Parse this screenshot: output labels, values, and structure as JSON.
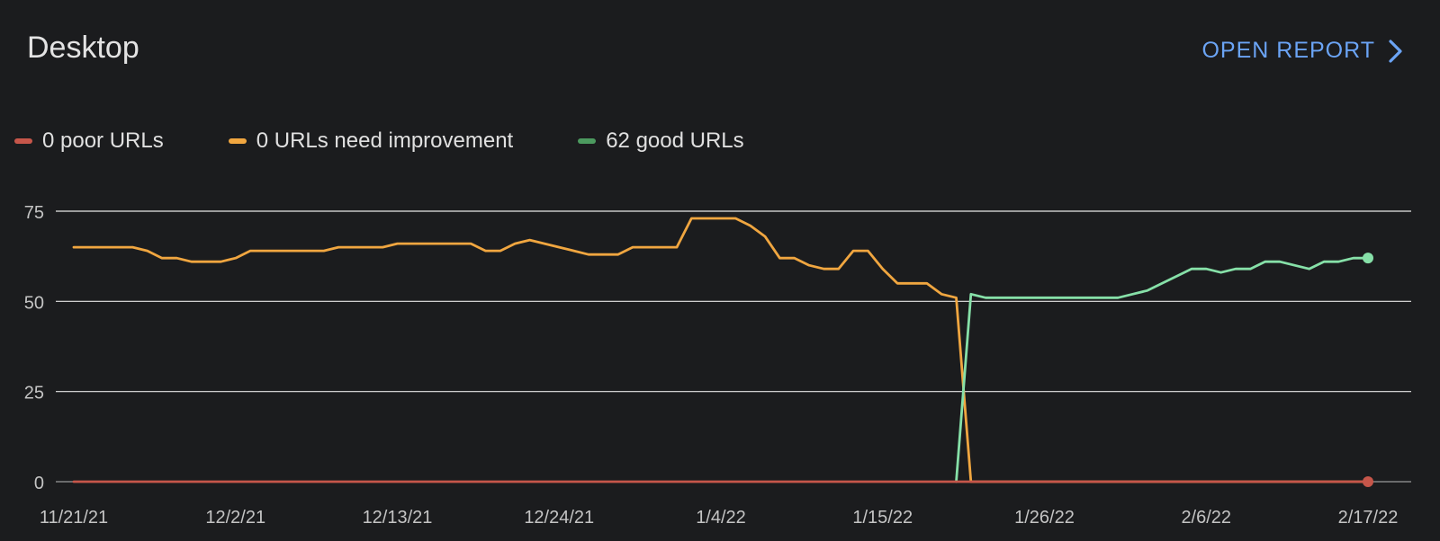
{
  "header": {
    "title": "Desktop",
    "open_report_label": "OPEN REPORT"
  },
  "legend": [
    {
      "label": "0 poor URLs",
      "color": "#c6564a"
    },
    {
      "label": "0 URLs need improvement",
      "color": "#f0a640"
    },
    {
      "label": "62 good URLs",
      "color": "#4c9a5f"
    }
  ],
  "colors": {
    "poor": "#c6564a",
    "needs_improvement": "#f0a640",
    "good": "#86e0a8",
    "accent": "#6ba4f5"
  },
  "chart_data": {
    "type": "line",
    "x_start": "11/21/21",
    "x_end": "2/17/22",
    "xticks": [
      "11/21/21",
      "12/2/21",
      "12/13/21",
      "12/24/21",
      "1/4/22",
      "1/15/22",
      "1/26/22",
      "2/6/22",
      "2/17/22"
    ],
    "yticks": [
      0,
      25,
      50,
      75
    ],
    "ylim": [
      0,
      75
    ],
    "grid": true,
    "legend_position": "top-left",
    "series": [
      {
        "name": "0 URLs need improvement",
        "color": "#f0a640",
        "points": [
          [
            "11/21/21",
            65
          ],
          [
            "11/22/21",
            65
          ],
          [
            "11/23/21",
            65
          ],
          [
            "11/24/21",
            65
          ],
          [
            "11/25/21",
            65
          ],
          [
            "11/26/21",
            64
          ],
          [
            "11/27/21",
            62
          ],
          [
            "11/28/21",
            62
          ],
          [
            "11/29/21",
            61
          ],
          [
            "11/30/21",
            61
          ],
          [
            "12/1/21",
            61
          ],
          [
            "12/2/21",
            62
          ],
          [
            "12/3/21",
            64
          ],
          [
            "12/4/21",
            64
          ],
          [
            "12/5/21",
            64
          ],
          [
            "12/6/21",
            64
          ],
          [
            "12/7/21",
            64
          ],
          [
            "12/8/21",
            64
          ],
          [
            "12/9/21",
            65
          ],
          [
            "12/10/21",
            65
          ],
          [
            "12/11/21",
            65
          ],
          [
            "12/12/21",
            65
          ],
          [
            "12/13/21",
            66
          ],
          [
            "12/14/21",
            66
          ],
          [
            "12/15/21",
            66
          ],
          [
            "12/16/21",
            66
          ],
          [
            "12/17/21",
            66
          ],
          [
            "12/18/21",
            66
          ],
          [
            "12/19/21",
            64
          ],
          [
            "12/20/21",
            64
          ],
          [
            "12/21/21",
            66
          ],
          [
            "12/22/21",
            67
          ],
          [
            "12/23/21",
            66
          ],
          [
            "12/24/21",
            65
          ],
          [
            "12/25/21",
            64
          ],
          [
            "12/26/21",
            63
          ],
          [
            "12/27/21",
            63
          ],
          [
            "12/28/21",
            63
          ],
          [
            "12/29/21",
            65
          ],
          [
            "12/30/21",
            65
          ],
          [
            "12/31/21",
            65
          ],
          [
            "1/1/22",
            65
          ],
          [
            "1/2/22",
            73
          ],
          [
            "1/3/22",
            73
          ],
          [
            "1/4/22",
            73
          ],
          [
            "1/5/22",
            73
          ],
          [
            "1/6/22",
            71
          ],
          [
            "1/7/22",
            68
          ],
          [
            "1/8/22",
            62
          ],
          [
            "1/9/22",
            62
          ],
          [
            "1/10/22",
            60
          ],
          [
            "1/11/22",
            59
          ],
          [
            "1/12/22",
            59
          ],
          [
            "1/13/22",
            64
          ],
          [
            "1/14/22",
            64
          ],
          [
            "1/15/22",
            59
          ],
          [
            "1/16/22",
            55
          ],
          [
            "1/17/22",
            55
          ],
          [
            "1/18/22",
            55
          ],
          [
            "1/19/22",
            52
          ],
          [
            "1/20/22",
            51
          ],
          [
            "1/21/22",
            0
          ],
          [
            "1/22/22",
            0
          ],
          [
            "1/23/22",
            0
          ],
          [
            "1/24/22",
            0
          ],
          [
            "1/25/22",
            0
          ],
          [
            "1/26/22",
            0
          ],
          [
            "1/27/22",
            0
          ],
          [
            "1/28/22",
            0
          ],
          [
            "1/29/22",
            0
          ],
          [
            "1/30/22",
            0
          ],
          [
            "1/31/22",
            0
          ],
          [
            "2/1/22",
            0
          ],
          [
            "2/2/22",
            0
          ],
          [
            "2/3/22",
            0
          ],
          [
            "2/4/22",
            0
          ],
          [
            "2/5/22",
            0
          ],
          [
            "2/6/22",
            0
          ],
          [
            "2/7/22",
            0
          ],
          [
            "2/8/22",
            0
          ],
          [
            "2/9/22",
            0
          ],
          [
            "2/10/22",
            0
          ],
          [
            "2/11/22",
            0
          ],
          [
            "2/12/22",
            0
          ],
          [
            "2/13/22",
            0
          ],
          [
            "2/14/22",
            0
          ],
          [
            "2/15/22",
            0
          ],
          [
            "2/16/22",
            0
          ],
          [
            "2/17/22",
            0
          ]
        ]
      },
      {
        "name": "62 good URLs",
        "color": "#86e0a8",
        "points": [
          [
            "1/20/22",
            0
          ],
          [
            "1/21/22",
            52
          ],
          [
            "1/22/22",
            51
          ],
          [
            "1/23/22",
            51
          ],
          [
            "1/24/22",
            51
          ],
          [
            "1/25/22",
            51
          ],
          [
            "1/26/22",
            51
          ],
          [
            "1/27/22",
            51
          ],
          [
            "1/28/22",
            51
          ],
          [
            "1/29/22",
            51
          ],
          [
            "1/30/22",
            51
          ],
          [
            "1/31/22",
            51
          ],
          [
            "2/1/22",
            52
          ],
          [
            "2/2/22",
            53
          ],
          [
            "2/3/22",
            55
          ],
          [
            "2/4/22",
            57
          ],
          [
            "2/5/22",
            59
          ],
          [
            "2/6/22",
            59
          ],
          [
            "2/7/22",
            58
          ],
          [
            "2/8/22",
            59
          ],
          [
            "2/9/22",
            59
          ],
          [
            "2/10/22",
            61
          ],
          [
            "2/11/22",
            61
          ],
          [
            "2/12/22",
            60
          ],
          [
            "2/13/22",
            59
          ],
          [
            "2/14/22",
            61
          ],
          [
            "2/15/22",
            61
          ],
          [
            "2/16/22",
            62
          ],
          [
            "2/17/22",
            62
          ]
        ],
        "end_marker": true
      },
      {
        "name": "0 poor URLs",
        "color": "#c6564a",
        "points": [
          [
            "11/21/21",
            0
          ],
          [
            "2/17/22",
            0
          ]
        ],
        "end_marker": true
      }
    ]
  }
}
